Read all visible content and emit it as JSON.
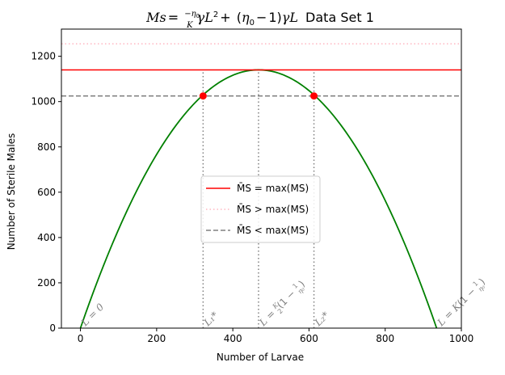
{
  "chart_data": {
    "type": "line",
    "title": "Ms = (−η₀/K)γL² + (η₀ − 1)γL Data Set 1",
    "xlabel": "Number of Larvae",
    "ylabel": "Number of Sterile Males",
    "xlim": [
      -50,
      1000
    ],
    "ylim": [
      0,
      1320
    ],
    "xticks": [
      0,
      200,
      400,
      600,
      800,
      1000
    ],
    "yticks": [
      0,
      200,
      400,
      600,
      800,
      1000,
      1200
    ],
    "grid": false,
    "legend_position": "center",
    "curve": {
      "color": "#008000",
      "x_zeros": [
        0,
        935
      ],
      "vertex_x": 467.5,
      "vertex_y": 1140
    },
    "horizontal_lines": [
      {
        "name": "M̄S = max(MS)",
        "y": 1140,
        "color": "#ff0000",
        "style": "solid"
      },
      {
        "name": "M̄S > max(MS)",
        "y": 1255,
        "color": "#ffb6c1",
        "style": "dotted"
      },
      {
        "name": "M̄S < max(MS)",
        "y": 1025,
        "color": "#808080",
        "style": "dashed"
      }
    ],
    "vertical_lines": [
      {
        "x": 322,
        "color": "#808080",
        "style": "dotted"
      },
      {
        "x": 467.5,
        "color": "#808080",
        "style": "dotted"
      },
      {
        "x": 613,
        "color": "#808080",
        "style": "dotted"
      }
    ],
    "points": [
      {
        "x": 322,
        "y": 1025,
        "color": "#ff0000"
      },
      {
        "x": 613,
        "y": 1025,
        "color": "#ff0000"
      }
    ],
    "annotations": [
      {
        "x": 0,
        "text": "L = 0",
        "kind": "text"
      },
      {
        "x": 322,
        "text": "L₁*",
        "kind": "text"
      },
      {
        "x": 467.5,
        "text": "L = (K/2)(1 − 1/η₀)",
        "kind": "half"
      },
      {
        "x": 613,
        "text": "L₂*",
        "kind": "text"
      },
      {
        "x": 935,
        "text": "L = K(1 − 1/η₀)",
        "kind": "full"
      }
    ]
  }
}
